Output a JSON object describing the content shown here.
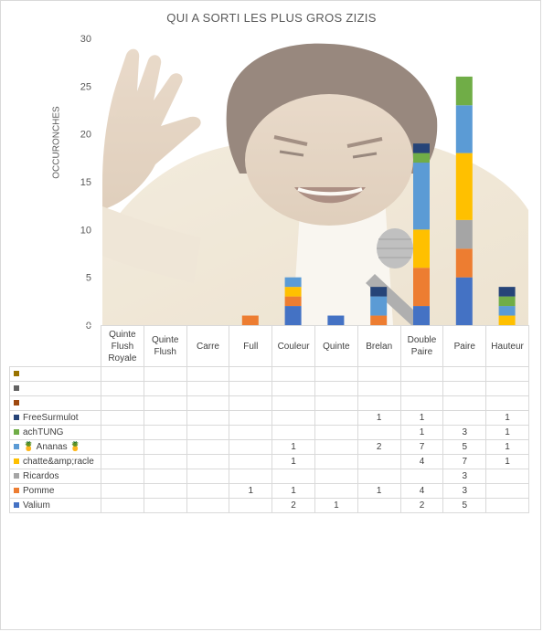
{
  "chart_data": {
    "type": "bar",
    "stacked": true,
    "title": "QUI A SORTI LES PLUS GROS ZIZIS",
    "ylabel": "OCCURONCHES",
    "xlabel": "",
    "ylim": [
      0,
      30
    ],
    "yticks": [
      0,
      5,
      10,
      15,
      20,
      25,
      30
    ],
    "grid": false,
    "legend": "table",
    "background": "photo-of-laughing-man",
    "categories": [
      "Quinte Flush Royale",
      "Quinte Flush",
      "Carre",
      "Full",
      "Couleur",
      "Quinte",
      "Brelan",
      "Double Paire",
      "Paire",
      "Hauteur"
    ],
    "series": [
      {
        "name": "Valium",
        "color": "#4472c4",
        "values": [
          null,
          null,
          null,
          null,
          2,
          1,
          null,
          2,
          5,
          null
        ]
      },
      {
        "name": "Pomme",
        "color": "#ed7d31",
        "values": [
          null,
          null,
          null,
          1,
          1,
          null,
          1,
          4,
          3,
          null
        ]
      },
      {
        "name": "Ricardos",
        "color": "#a5a5a5",
        "values": [
          null,
          null,
          null,
          null,
          null,
          null,
          null,
          null,
          3,
          null
        ]
      },
      {
        "name": "chatte&amp;racle",
        "color": "#ffc000",
        "values": [
          null,
          null,
          null,
          null,
          1,
          null,
          null,
          4,
          7,
          1
        ]
      },
      {
        "name": "🍍 Ananas 🍍",
        "color": "#5b9bd5",
        "values": [
          null,
          null,
          null,
          null,
          1,
          null,
          2,
          7,
          5,
          1
        ]
      },
      {
        "name": "achTUNG",
        "color": "#70ad47",
        "values": [
          null,
          null,
          null,
          null,
          null,
          null,
          null,
          1,
          3,
          1
        ]
      },
      {
        "name": "FreeSurmulot",
        "color": "#264478",
        "values": [
          null,
          null,
          null,
          null,
          null,
          null,
          1,
          1,
          null,
          1
        ]
      },
      {
        "name": "",
        "color": "#9e480e",
        "values": [
          null,
          null,
          null,
          null,
          null,
          null,
          null,
          null,
          null,
          null
        ]
      },
      {
        "name": "",
        "color": "#636363",
        "values": [
          null,
          null,
          null,
          null,
          null,
          null,
          null,
          null,
          null,
          null
        ]
      },
      {
        "name": "",
        "color": "#997300",
        "values": [
          null,
          null,
          null,
          null,
          null,
          null,
          null,
          null,
          null,
          null
        ]
      }
    ]
  }
}
